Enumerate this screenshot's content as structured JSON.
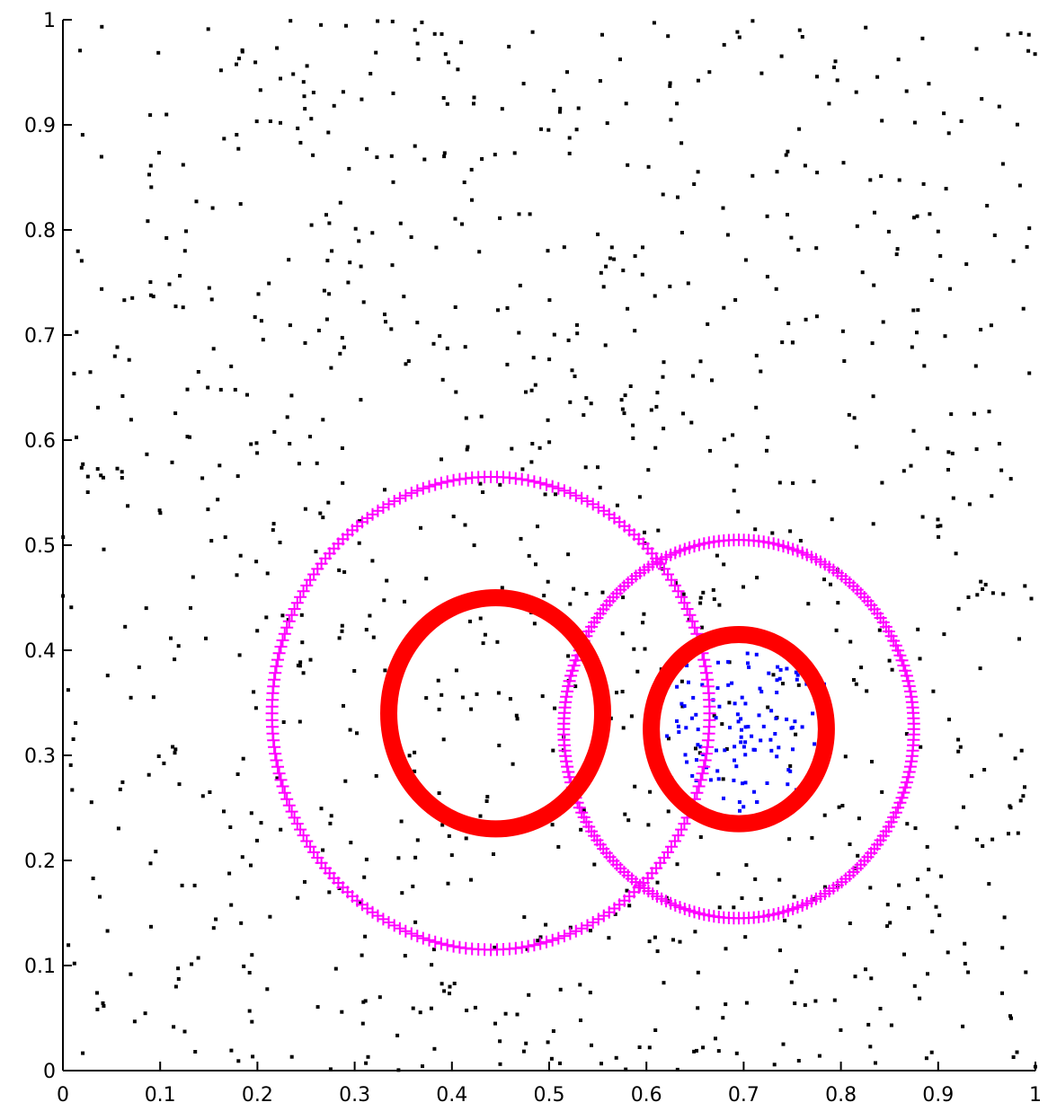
{
  "chart_data": {
    "type": "scatter",
    "title": "",
    "xlabel": "",
    "ylabel": "",
    "xlim": [
      0,
      1
    ],
    "ylim": [
      0,
      1
    ],
    "grid": false,
    "x_ticks": [
      "0",
      "0.1",
      "0.2",
      "0.3",
      "0.4",
      "0.5",
      "0.6",
      "0.7",
      "0.8",
      "0.9",
      "1"
    ],
    "y_ticks": [
      "0",
      "0.1",
      "0.2",
      "0.3",
      "0.4",
      "0.5",
      "0.6",
      "0.7",
      "0.8",
      "0.9",
      "1"
    ],
    "colors": {
      "background_points": "#000000",
      "cluster_points": "#0000ff",
      "inner_circles": "#ff0000",
      "outer_circles": "#ff00ff",
      "axis": "#000000"
    },
    "background_points": {
      "count": 1000,
      "distribution": "uniform",
      "x_range": [
        0,
        1
      ],
      "y_range": [
        0,
        1
      ],
      "marker": "dot"
    },
    "cluster_points": {
      "count": 120,
      "center": [
        0.705,
        0.33
      ],
      "x_spread": 0.085,
      "y_spread": 0.095,
      "marker": "dot"
    },
    "inner_circles": [
      {
        "center": [
          0.445,
          0.34
        ],
        "radius": 0.11
      },
      {
        "center": [
          0.695,
          0.325
        ],
        "radius": 0.09
      }
    ],
    "outer_circles": [
      {
        "center": [
          0.44,
          0.34
        ],
        "radius": 0.225,
        "marker": "+"
      },
      {
        "center": [
          0.695,
          0.325
        ],
        "radius": 0.18,
        "marker": "+"
      }
    ]
  }
}
